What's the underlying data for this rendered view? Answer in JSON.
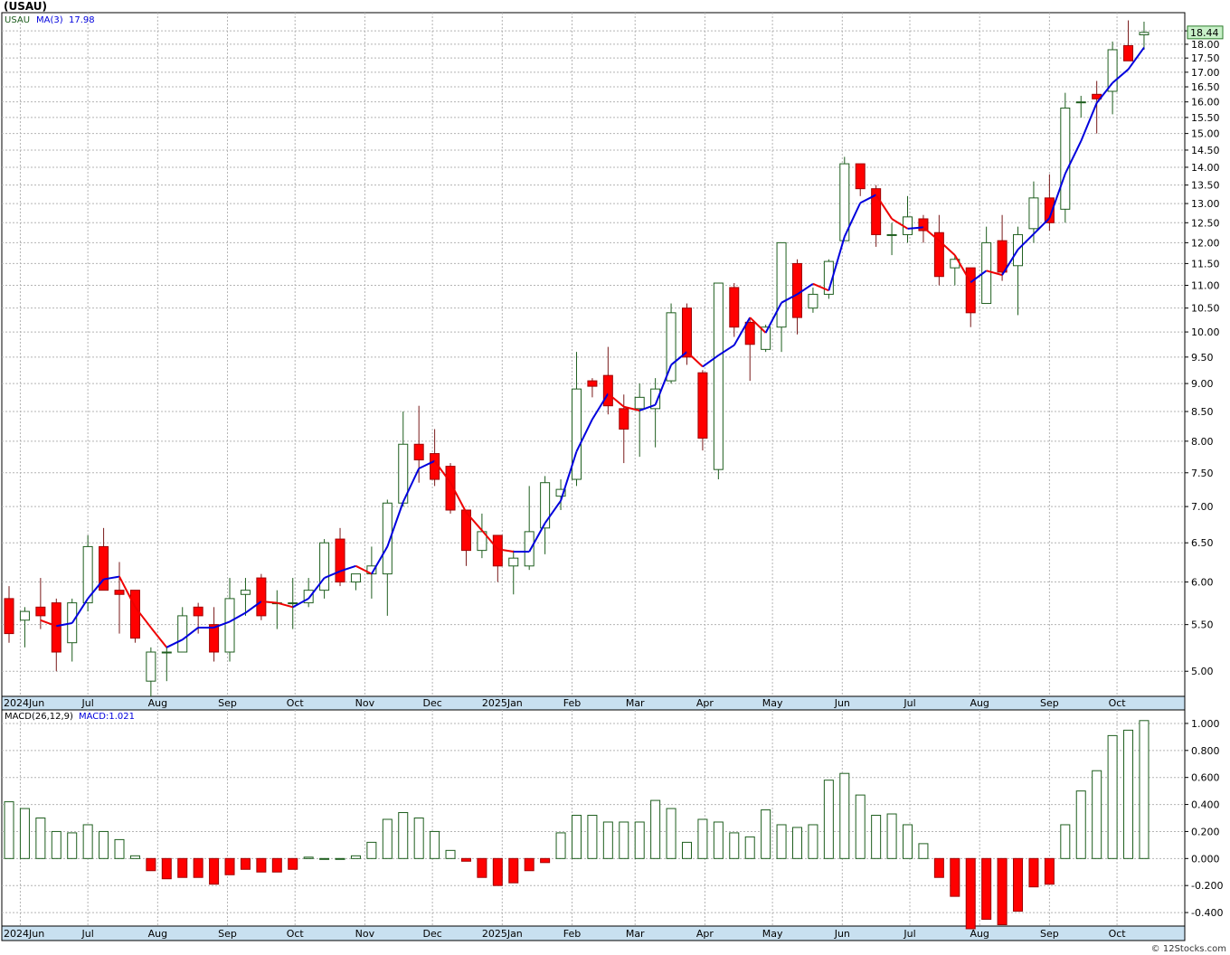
{
  "header": {
    "title": "(USAU)"
  },
  "legend": {
    "symbol": "USAU",
    "ma_label": "MA(3)",
    "ma_value": "17.98",
    "macd_label": "MACD(26,12,9)",
    "macd_value_label": "MACD:1.021"
  },
  "price_badge": "18.44",
  "watermark": "© 12Stocks.com",
  "colors": {
    "up": "#1e5e1e",
    "down_fill": "#ff0000",
    "ma_up": "#0000dd",
    "ma_down": "#ee0000",
    "grid": "#b4b4b4",
    "axis_band": "#c8e0f0",
    "badge_fill": "#c8f0c8"
  },
  "chart_data": [
    {
      "type": "candlestick",
      "title": "USAU",
      "scale": "log",
      "ylim": [
        4.75,
        19.2
      ],
      "y_ticks": [
        "5.00",
        "5.50",
        "6.00",
        "6.50",
        "7.00",
        "7.50",
        "8.00",
        "8.50",
        "9.00",
        "9.50",
        "10.00",
        "10.50",
        "11.00",
        "11.50",
        "12.00",
        "12.50",
        "13.00",
        "13.50",
        "14.00",
        "14.50",
        "15.00",
        "15.50",
        "16.00",
        "16.50",
        "17.00",
        "17.50",
        "18.00",
        "18.50"
      ],
      "x_labels": [
        "2024Jun",
        "Jul",
        "Aug",
        "Sep",
        "Oct",
        "Nov",
        "Dec",
        "2025Jan",
        "Feb",
        "Mar",
        "Apr",
        "May",
        "Jun",
        "Jul",
        "Aug",
        "Sep",
        "Oct"
      ],
      "series": [
        {
          "name": "USAU",
          "ohlc": [
            [
              5.8,
              5.95,
              5.3,
              5.4
            ],
            [
              5.55,
              5.7,
              5.25,
              5.65
            ],
            [
              5.7,
              6.05,
              5.45,
              5.6
            ],
            [
              5.75,
              5.8,
              5.0,
              5.2
            ],
            [
              5.3,
              5.8,
              5.1,
              5.75
            ],
            [
              5.75,
              6.6,
              5.65,
              6.45
            ],
            [
              6.45,
              6.7,
              5.9,
              5.9
            ],
            [
              5.9,
              6.25,
              5.4,
              5.85
            ],
            [
              5.9,
              5.9,
              5.3,
              5.35
            ],
            [
              4.9,
              5.25,
              4.75,
              5.2
            ],
            [
              5.2,
              5.25,
              4.9,
              5.2
            ],
            [
              5.2,
              5.7,
              5.2,
              5.6
            ],
            [
              5.7,
              5.75,
              5.4,
              5.6
            ],
            [
              5.5,
              5.7,
              5.1,
              5.2
            ],
            [
              5.2,
              6.05,
              5.1,
              5.8
            ],
            [
              5.85,
              6.05,
              5.6,
              5.9
            ],
            [
              6.05,
              6.1,
              5.55,
              5.6
            ],
            [
              5.75,
              5.9,
              5.45,
              5.75
            ],
            [
              5.75,
              6.05,
              5.45,
              5.75
            ],
            [
              5.75,
              6.05,
              5.7,
              5.9
            ],
            [
              5.9,
              6.55,
              5.8,
              6.5
            ],
            [
              6.55,
              6.7,
              5.95,
              6.0
            ],
            [
              6.0,
              6.1,
              5.9,
              6.1
            ],
            [
              6.1,
              6.45,
              5.8,
              6.2
            ],
            [
              6.1,
              7.1,
              5.6,
              7.05
            ],
            [
              7.05,
              8.5,
              7.0,
              7.95
            ],
            [
              7.95,
              8.6,
              7.35,
              7.7
            ],
            [
              7.8,
              8.2,
              7.3,
              7.4
            ],
            [
              7.6,
              7.65,
              6.9,
              6.95
            ],
            [
              6.95,
              6.95,
              6.2,
              6.4
            ],
            [
              6.4,
              6.9,
              6.3,
              6.65
            ],
            [
              6.6,
              6.6,
              6.0,
              6.2
            ],
            [
              6.2,
              6.4,
              5.85,
              6.3
            ],
            [
              6.2,
              7.3,
              6.15,
              6.65
            ],
            [
              6.7,
              7.45,
              6.35,
              7.35
            ],
            [
              7.15,
              7.4,
              6.95,
              7.25
            ],
            [
              7.4,
              9.6,
              7.3,
              8.9
            ],
            [
              9.05,
              9.1,
              8.75,
              8.95
            ],
            [
              9.15,
              9.7,
              8.45,
              8.6
            ],
            [
              8.55,
              8.8,
              7.65,
              8.2
            ],
            [
              8.55,
              9.0,
              7.75,
              8.75
            ],
            [
              8.55,
              9.1,
              7.9,
              8.9
            ],
            [
              9.05,
              10.6,
              9.0,
              10.4
            ],
            [
              10.5,
              10.6,
              9.35,
              9.5
            ],
            [
              9.2,
              9.25,
              7.85,
              8.05
            ],
            [
              7.55,
              11.05,
              7.4,
              11.05
            ],
            [
              10.95,
              11.05,
              9.9,
              10.1
            ],
            [
              10.2,
              10.3,
              9.05,
              9.75
            ],
            [
              9.65,
              10.15,
              9.6,
              10.1
            ],
            [
              10.1,
              12.0,
              9.6,
              12.0
            ],
            [
              11.5,
              11.6,
              9.95,
              10.3
            ],
            [
              10.5,
              10.95,
              10.4,
              10.8
            ],
            [
              10.8,
              11.6,
              10.7,
              11.55
            ],
            [
              12.05,
              14.3,
              12.05,
              14.1
            ],
            [
              14.1,
              14.1,
              13.2,
              13.4
            ],
            [
              13.4,
              13.5,
              11.9,
              12.2
            ],
            [
              12.2,
              12.5,
              11.7,
              12.2
            ],
            [
              12.2,
              13.2,
              12.0,
              12.65
            ],
            [
              12.6,
              12.7,
              12.0,
              12.3
            ],
            [
              12.25,
              12.7,
              11.0,
              11.2
            ],
            [
              11.4,
              11.7,
              11.0,
              11.6
            ],
            [
              11.4,
              11.4,
              10.1,
              10.4
            ],
            [
              10.6,
              12.4,
              10.6,
              12.0
            ],
            [
              12.05,
              12.7,
              11.1,
              11.3
            ],
            [
              11.45,
              12.4,
              10.35,
              12.2
            ],
            [
              12.35,
              13.6,
              12.0,
              13.15
            ],
            [
              13.15,
              13.8,
              12.3,
              12.5
            ],
            [
              12.85,
              16.3,
              12.5,
              15.8
            ],
            [
              16.0,
              16.2,
              15.5,
              16.0
            ],
            [
              16.25,
              16.7,
              15.0,
              16.1
            ],
            [
              16.35,
              18.1,
              15.6,
              17.8
            ],
            [
              17.95,
              18.9,
              17.4,
              17.4
            ],
            [
              18.35,
              18.85,
              17.8,
              18.44
            ]
          ]
        },
        {
          "name": "MA(3)",
          "color_up": "#0000dd",
          "color_down": "#ee0000"
        }
      ]
    },
    {
      "type": "bar",
      "title": "MACD(26,12,9)",
      "ylim": [
        -0.5,
        1.1
      ],
      "y_ticks": [
        "-0.400",
        "-0.200",
        "0.000",
        "0.200",
        "0.400",
        "0.600",
        "0.800",
        "1.000"
      ],
      "series": [
        {
          "name": "MACD:1.021",
          "values": [
            0.42,
            0.37,
            0.3,
            0.2,
            0.19,
            0.25,
            0.2,
            0.14,
            0.02,
            -0.09,
            -0.15,
            -0.14,
            -0.14,
            -0.19,
            -0.12,
            -0.08,
            -0.1,
            -0.1,
            -0.08,
            0.01,
            0.0,
            0.0,
            0.02,
            0.12,
            0.29,
            0.34,
            0.3,
            0.2,
            0.06,
            -0.02,
            -0.14,
            -0.2,
            -0.18,
            -0.09,
            -0.03,
            0.19,
            0.32,
            0.32,
            0.27,
            0.27,
            0.27,
            0.43,
            0.37,
            0.12,
            0.29,
            0.27,
            0.19,
            0.16,
            0.36,
            0.25,
            0.23,
            0.25,
            0.58,
            0.63,
            0.47,
            0.32,
            0.33,
            0.25,
            0.11,
            -0.14,
            -0.28,
            -0.52,
            -0.45,
            -0.49,
            -0.39,
            -0.21,
            -0.19,
            0.25,
            0.5,
            0.65,
            0.91,
            0.95,
            1.021
          ]
        }
      ]
    }
  ]
}
